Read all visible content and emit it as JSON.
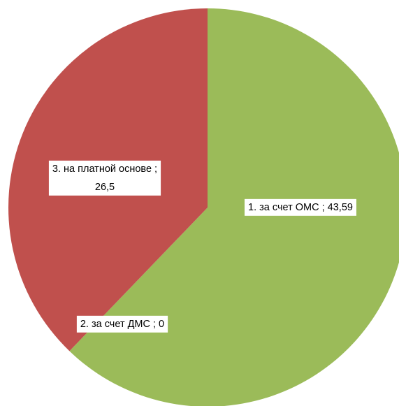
{
  "chart_data": {
    "type": "pie",
    "categories": [
      "1. за счет ОМС ;",
      "2. за счет ДМС ;",
      "3. на платной основе ;"
    ],
    "values": [
      43.59,
      0,
      26.5
    ],
    "value_labels": [
      "43,59",
      "0",
      "26,5"
    ],
    "colors": [
      "#9bbb59",
      "#4f81bd",
      "#c0504d"
    ]
  }
}
